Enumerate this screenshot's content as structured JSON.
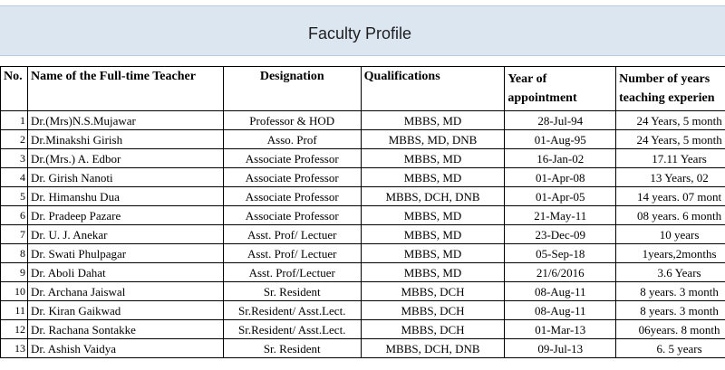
{
  "title": "Faculty Profile",
  "columns": {
    "no": "No.",
    "name": "Name of the Full-time Teacher",
    "designation": "Designation",
    "qualifications": "Qualifications",
    "year_line1": "Year of",
    "year_line2": "appointment",
    "exp_line1": "Number of years",
    "exp_line2": "teaching experien"
  },
  "rows": [
    {
      "no": "1",
      "name": "Dr.(Mrs)N.S.Mujawar",
      "designation": "Professor  & HOD",
      "qualifications": "MBBS, MD",
      "year": "28-Jul-94",
      "experience": "24 Years, 5  month"
    },
    {
      "no": "2",
      "name": "Dr.Minakshi Girish",
      "designation": "Asso. Prof",
      "qualifications": "MBBS, MD, DNB",
      "year": "01-Aug-95",
      "experience": "24 Years, 5  month"
    },
    {
      "no": "3",
      "name": "Dr.(Mrs.) A. Edbor",
      "designation": "Associate Professor",
      "qualifications": "MBBS, MD",
      "year": "16-Jan-02",
      "experience": "17.11 Years"
    },
    {
      "no": "4",
      "name": "Dr. Girish Nanoti",
      "designation": "Associate Professor",
      "qualifications": "MBBS, MD",
      "year": "01-Apr-08",
      "experience": "13 Years,    02"
    },
    {
      "no": "5",
      "name": "Dr. Himanshu Dua",
      "designation": "Associate Professor",
      "qualifications": "MBBS, DCH, DNB",
      "year": "01-Apr-05",
      "experience": "14 years.   07 mont"
    },
    {
      "no": "6",
      "name": "Dr. Pradeep Pazare",
      "designation": "Associate Professor",
      "qualifications": "MBBS, MD",
      "year": "21-May-11",
      "experience": "08 years.   6 month"
    },
    {
      "no": "7",
      "name": "Dr. U. J. Anekar",
      "designation": "Asst. Prof/ Lectuer",
      "qualifications": "MBBS, MD",
      "year": "23-Dec-09",
      "experience": "10 years"
    },
    {
      "no": "8",
      "name": "Dr. Swati Phulpagar",
      "designation": "Asst. Prof/ Lectuer",
      "qualifications": "MBBS, MD",
      "year": "05-Sep-18",
      "experience": "1years,2months"
    },
    {
      "no": "9",
      "name": "Dr. Aboli Dahat",
      "designation": "Asst. Prof/Lectuer",
      "qualifications": "MBBS, MD",
      "year": "21/6/2016",
      "experience": "3.6 Years"
    },
    {
      "no": "10",
      "name": "Dr. Archana Jaiswal",
      "designation": "Sr. Resident",
      "qualifications": "MBBS, DCH",
      "year": "08-Aug-11",
      "experience": "8 years.  3 month"
    },
    {
      "no": "11",
      "name": "Dr. Kiran Gaikwad",
      "designation": "Sr.Resident/ Asst.Lect.",
      "qualifications": "MBBS, DCH",
      "year": "08-Aug-11",
      "experience": "8 years.  3 month"
    },
    {
      "no": "12",
      "name": "Dr. Rachana Sontakke",
      "designation": "Sr.Resident/ Asst.Lect.",
      "qualifications": "MBBS, DCH",
      "year": "01-Mar-13",
      "experience": "06years.  8 month"
    },
    {
      "no": "13",
      "name": "Dr. Ashish Vaidya",
      "designation": "Sr. Resident",
      "qualifications": "MBBS, DCH, DNB",
      "year": "09-Jul-13",
      "experience": "6. 5 years"
    }
  ]
}
